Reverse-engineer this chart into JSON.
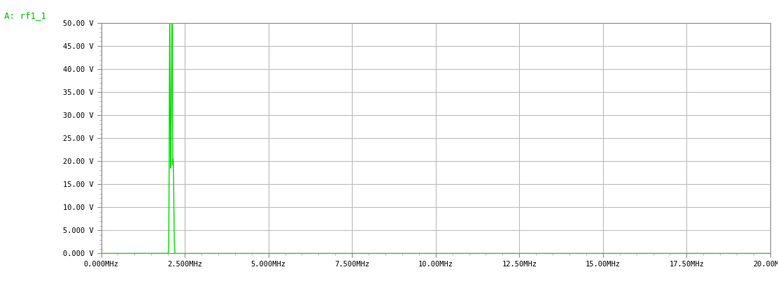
{
  "title": "A: rf1_1",
  "title_color": "#00bb00",
  "bg_color": "#ffffff",
  "plot_bg_color": "#ffffff",
  "grid_color_h": "#bbbbbb",
  "grid_color_v": "#bbbbbb",
  "line_color": "#00dd00",
  "xmin": 0.0,
  "xmax": 20.0,
  "ymin": 0.0,
  "ymax": 50.0,
  "xticks": [
    0.0,
    2.5,
    5.0,
    7.5,
    10.0,
    12.5,
    15.0,
    17.5,
    20.0
  ],
  "xtick_labels": [
    "0.000MHz",
    "2.500MHz",
    "5.000MHz",
    "7.500MHz",
    "10.00MHz",
    "12.50MHz",
    "15.00MHz",
    "17.50MHz",
    "20.00MHz"
  ],
  "yticks": [
    0.0,
    5.0,
    10.0,
    15.0,
    20.0,
    25.0,
    30.0,
    35.0,
    40.0,
    45.0,
    50.0
  ],
  "ytick_labels": [
    "0.000 V",
    "5.000 V",
    "10.00 V",
    "15.00 V",
    "20.00 V",
    "25.00 V",
    "30.00 V",
    "35.00 V",
    "40.00 V",
    "45.00 V",
    "50.00 V"
  ],
  "peak1_freq": 2.05,
  "peak1_value": 50.0,
  "peak1_sigma": 0.018,
  "peak2_freq": 2.12,
  "peak2_value": 44.0,
  "peak2_sigma": 0.012,
  "peak3_freq": 2.1,
  "peak3_value": 31.0,
  "peak3_sigma": 0.025,
  "peak4_freq": 2.15,
  "peak4_value": 18.0,
  "peak4_sigma": 0.02,
  "peak5_freq": 2.17,
  "peak5_value": 6.0,
  "peak5_sigma": 0.018
}
